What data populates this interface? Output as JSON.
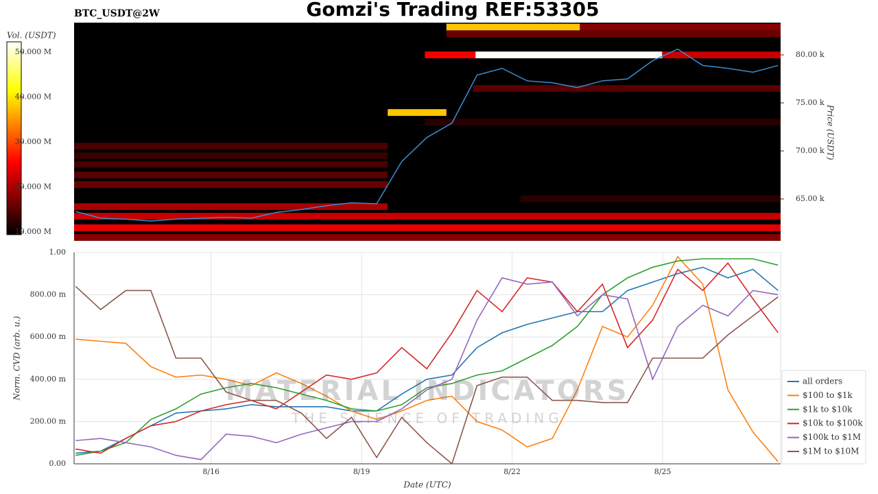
{
  "title": "Gomzi's Trading REF:53305",
  "watermark": {
    "title": "MATERIAL INDICATORS",
    "subtitle": "THE SCIENCE OF TRADING"
  },
  "chart_data": [
    {
      "type": "heatmap",
      "title": "BTC_USDT@2W",
      "ylabel": "Price (USDT)",
      "colorbar_label": "Vol. (USDT)",
      "xlim": [
        13.27,
        27.35
      ],
      "ylim": [
        60640,
        83360
      ],
      "yticks": [
        {
          "value": 65000,
          "label": "65.00 k"
        },
        {
          "value": 70000,
          "label": "70.00 k"
        },
        {
          "value": 75000,
          "label": "75.00 k"
        },
        {
          "value": 80000,
          "label": "80.00 k"
        }
      ],
      "clim": [
        9400000,
        52300000
      ],
      "cticks": [
        {
          "value": 10000000,
          "label": "10.000 M"
        },
        {
          "value": 20000000,
          "label": "20.000 M"
        },
        {
          "value": 30000000,
          "label": "30.000 M"
        },
        {
          "value": 40000000,
          "label": "40.000 M"
        },
        {
          "value": 50000000,
          "label": "50.000 M"
        }
      ],
      "cmap": "hot",
      "bands": [
        {
          "price": 82900,
          "x": [
            20.69,
            23.35
          ],
          "value": 38000000
        },
        {
          "price": 82900,
          "x": [
            23.35,
            27.35
          ],
          "value": 18000000
        },
        {
          "price": 82200,
          "x": [
            20.69,
            27.35
          ],
          "value": 16000000
        },
        {
          "price": 80000,
          "x": [
            20.26,
            21.27
          ],
          "value": 25000000
        },
        {
          "price": 80000,
          "x": [
            21.27,
            24.99
          ],
          "value": 52000000
        },
        {
          "price": 80000,
          "x": [
            24.99,
            27.35
          ],
          "value": 22000000
        },
        {
          "price": 76500,
          "x": [
            21.22,
            27.35
          ],
          "value": 15000000
        },
        {
          "price": 74000,
          "x": [
            19.52,
            20.69
          ],
          "value": 38000000
        },
        {
          "price": 73000,
          "x": [
            20.26,
            27.35
          ],
          "value": 12000000
        },
        {
          "price": 70500,
          "x": [
            13.27,
            19.52
          ],
          "value": 14000000
        },
        {
          "price": 69500,
          "x": [
            13.27,
            19.52
          ],
          "value": 13000000
        },
        {
          "price": 68600,
          "x": [
            13.27,
            19.52
          ],
          "value": 14000000
        },
        {
          "price": 67500,
          "x": [
            13.27,
            19.52
          ],
          "value": 15000000
        },
        {
          "price": 66500,
          "x": [
            13.27,
            19.52
          ],
          "value": 16000000
        },
        {
          "price": 65000,
          "x": [
            22.17,
            27.35
          ],
          "value": 12000000
        },
        {
          "price": 64200,
          "x": [
            13.27,
            19.52
          ],
          "value": 20000000
        },
        {
          "price": 63200,
          "x": [
            13.27,
            27.35
          ],
          "value": 22000000
        },
        {
          "price": 62000,
          "x": [
            13.27,
            27.35
          ],
          "value": 24000000
        },
        {
          "price": 61000,
          "x": [
            13.27,
            27.35
          ],
          "value": 18000000
        }
      ],
      "x": [
        13.3,
        13.8,
        14.3,
        14.8,
        15.3,
        15.8,
        16.3,
        16.8,
        17.3,
        17.8,
        18.3,
        18.8,
        19.3,
        19.8,
        20.3,
        20.8,
        21.3,
        21.8,
        22.3,
        22.8,
        23.3,
        23.8,
        24.3,
        24.8,
        25.3,
        25.8,
        26.3,
        26.8,
        27.3
      ],
      "price": {
        "color": "#3b8ed0",
        "values": [
          63700,
          63000,
          62900,
          62700,
          62900,
          63000,
          63100,
          63000,
          63600,
          63900,
          64300,
          64600,
          64500,
          68900,
          71400,
          72900,
          77900,
          78600,
          77300,
          77100,
          76600,
          77300,
          77500,
          79400,
          80600,
          78900,
          78600,
          78200,
          78900
        ]
      }
    },
    {
      "type": "line",
      "xlabel": "Date (UTC)",
      "ylabel": "Norm. CVD (arb. u.)",
      "grid": true,
      "legend": "right",
      "xlim": [
        13.27,
        27.35
      ],
      "xticks": [
        {
          "value": 16,
          "label": "8/16"
        },
        {
          "value": 19,
          "label": "8/19"
        },
        {
          "value": 22,
          "label": "8/22"
        },
        {
          "value": 25,
          "label": "8/25"
        }
      ],
      "ylim": [
        0,
        1
      ],
      "yticks": [
        {
          "value": 0,
          "label": "0.00"
        },
        {
          "value": 0.2,
          "label": "200.00 m"
        },
        {
          "value": 0.4,
          "label": "400.00 m"
        },
        {
          "value": 0.6,
          "label": "600.00 m"
        },
        {
          "value": 0.8,
          "label": "800.00 m"
        },
        {
          "value": 1,
          "label": "1.00"
        }
      ],
      "x": [
        13.3,
        13.8,
        14.3,
        14.8,
        15.3,
        15.8,
        16.3,
        16.8,
        17.3,
        17.8,
        18.3,
        18.8,
        19.3,
        19.8,
        20.3,
        20.8,
        21.3,
        21.8,
        22.3,
        22.8,
        23.3,
        23.8,
        24.3,
        24.8,
        25.3,
        25.8,
        26.3,
        26.8,
        27.3
      ],
      "series": [
        {
          "name": "all orders",
          "color": "#1f77b4",
          "values": [
            0.05,
            0.06,
            0.12,
            0.18,
            0.24,
            0.25,
            0.26,
            0.28,
            0.27,
            0.27,
            0.27,
            0.25,
            0.25,
            0.33,
            0.4,
            0.42,
            0.55,
            0.62,
            0.66,
            0.69,
            0.72,
            0.72,
            0.82,
            0.86,
            0.9,
            0.93,
            0.88,
            0.92,
            0.82
          ]
        },
        {
          "name": "$100 to $1k",
          "color": "#ff7f0e",
          "values": [
            0.59,
            0.58,
            0.57,
            0.46,
            0.41,
            0.42,
            0.4,
            0.37,
            0.43,
            0.38,
            0.32,
            0.25,
            0.21,
            0.25,
            0.3,
            0.32,
            0.2,
            0.16,
            0.08,
            0.12,
            0.35,
            0.65,
            0.6,
            0.75,
            0.98,
            0.85,
            0.35,
            0.15,
            0.01
          ]
        },
        {
          "name": "$1k to $10k",
          "color": "#2ca02c",
          "values": [
            0.04,
            0.06,
            0.1,
            0.21,
            0.26,
            0.33,
            0.36,
            0.38,
            0.36,
            0.33,
            0.3,
            0.26,
            0.25,
            0.28,
            0.36,
            0.38,
            0.42,
            0.44,
            0.5,
            0.56,
            0.65,
            0.8,
            0.88,
            0.93,
            0.96,
            0.97,
            0.97,
            0.97,
            0.94
          ]
        },
        {
          "name": "$10k to $100k",
          "color": "#d62728",
          "values": [
            0.07,
            0.05,
            0.12,
            0.18,
            0.2,
            0.25,
            0.28,
            0.3,
            0.26,
            0.34,
            0.42,
            0.4,
            0.43,
            0.55,
            0.45,
            0.62,
            0.82,
            0.72,
            0.88,
            0.86,
            0.72,
            0.85,
            0.55,
            0.68,
            0.92,
            0.82,
            0.95,
            0.78,
            0.62
          ]
        },
        {
          "name": "$100k to $1M",
          "color": "#9467bd",
          "values": [
            0.11,
            0.12,
            0.1,
            0.08,
            0.04,
            0.02,
            0.14,
            0.13,
            0.1,
            0.14,
            0.17,
            0.2,
            0.2,
            0.26,
            0.35,
            0.4,
            0.68,
            0.88,
            0.85,
            0.86,
            0.7,
            0.8,
            0.78,
            0.4,
            0.65,
            0.75,
            0.7,
            0.82,
            0.8
          ]
        },
        {
          "name": "$1M to $10M",
          "color": "#8c564b",
          "values": [
            0.84,
            0.73,
            0.82,
            0.82,
            0.5,
            0.5,
            0.34,
            0.3,
            0.3,
            0.24,
            0.12,
            0.22,
            0.03,
            0.22,
            0.1,
            0.0,
            0.37,
            0.41,
            0.41,
            0.3,
            0.3,
            0.29,
            0.29,
            0.5,
            0.5,
            0.5,
            0.61,
            0.7,
            0.79
          ]
        }
      ]
    }
  ]
}
